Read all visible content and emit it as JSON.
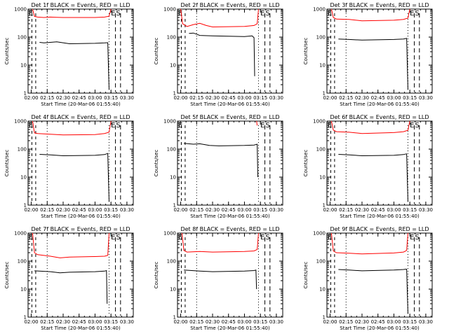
{
  "chart_data": [
    {
      "type": "line",
      "title": "Det 1f BLACK = Events, RED = LLD",
      "xlabel": "Start Time (20-Mar-06 01:55:40)",
      "ylabel": "Counts/sec",
      "yscale": "log",
      "ylim": [
        1,
        1000
      ],
      "yticks": [
        "1",
        "10",
        "100",
        "1000"
      ],
      "xticks": [
        "02:00",
        "02:15",
        "02:30",
        "02:45",
        "03:00",
        "03:15",
        "03:30"
      ],
      "markers": [
        "E",
        "S"
      ],
      "series": [
        {
          "color": "#ff0000",
          "values": [
            [
              2.02,
              1000
            ],
            [
              2.05,
              550
            ],
            [
              2.1,
              520
            ],
            [
              2.2,
              500
            ],
            [
              2.3,
              520
            ],
            [
              2.4,
              510
            ],
            [
              2.5,
              500
            ],
            [
              3.0,
              500
            ],
            [
              3.15,
              520
            ],
            [
              3.22,
              560
            ],
            [
              3.25,
              1000
            ]
          ]
        },
        {
          "color": "#000000",
          "values": [
            [
              2.13,
              65
            ],
            [
              2.2,
              62
            ],
            [
              2.4,
              68
            ],
            [
              2.6,
              58
            ],
            [
              3.0,
              60
            ],
            [
              3.15,
              62
            ],
            [
              3.2,
              63
            ],
            [
              3.22,
              1.3
            ]
          ]
        }
      ]
    },
    {
      "type": "line",
      "title": "Det 2f BLACK = Events, RED = LLD",
      "xlabel": "Start Time (20-Mar-06 01:55:40)",
      "ylabel": "Counts/sec",
      "yscale": "log",
      "ylim": [
        1,
        1000
      ],
      "yticks": [
        "1",
        "10",
        "100",
        "1000"
      ],
      "xticks": [
        "02:00",
        "02:15",
        "02:30",
        "02:45",
        "03:00",
        "03:15",
        "03:30"
      ],
      "markers": [
        "E",
        "S"
      ],
      "series": [
        {
          "color": "#ff0000",
          "values": [
            [
              2.0,
              1000
            ],
            [
              2.03,
              300
            ],
            [
              2.1,
              240
            ],
            [
              2.2,
              280
            ],
            [
              2.3,
              310
            ],
            [
              2.4,
              260
            ],
            [
              2.5,
              230
            ],
            [
              3.0,
              240
            ],
            [
              3.15,
              260
            ],
            [
              3.2,
              300
            ],
            [
              3.22,
              1000
            ]
          ]
        },
        {
          "color": "#000000",
          "values": [
            [
              2.13,
              135
            ],
            [
              2.2,
              140
            ],
            [
              2.3,
              115
            ],
            [
              2.5,
              110
            ],
            [
              3.0,
              105
            ],
            [
              3.12,
              110
            ],
            [
              3.15,
              95
            ],
            [
              3.16,
              4
            ]
          ]
        }
      ]
    },
    {
      "type": "line",
      "title": "Det 3f BLACK = Events, RED = LLD",
      "xlabel": "Start Time (20-Mar-06 01:55:40)",
      "ylabel": "Counts/sec",
      "yscale": "log",
      "ylim": [
        1,
        1000
      ],
      "yticks": [
        "1",
        "10",
        "100",
        "1000"
      ],
      "xticks": [
        "02:00",
        "02:15",
        "02:30",
        "02:45",
        "03:00",
        "03:15",
        "03:30"
      ],
      "markers": [
        "E",
        "S"
      ],
      "series": [
        {
          "color": "#ff0000",
          "values": [
            [
              2.02,
              1000
            ],
            [
              2.05,
              500
            ],
            [
              2.1,
              440
            ],
            [
              2.3,
              430
            ],
            [
              2.5,
              380
            ],
            [
              3.0,
              400
            ],
            [
              3.15,
              430
            ],
            [
              3.22,
              480
            ],
            [
              3.25,
              1000
            ]
          ]
        },
        {
          "color": "#000000",
          "values": [
            [
              2.13,
              85
            ],
            [
              2.3,
              82
            ],
            [
              2.5,
              78
            ],
            [
              3.0,
              82
            ],
            [
              3.15,
              85
            ],
            [
              3.2,
              90
            ],
            [
              3.22,
              1.3
            ]
          ]
        }
      ]
    },
    {
      "type": "line",
      "title": "Det 4f BLACK = Events, RED = LLD",
      "xlabel": "Start Time (20-Mar-06 01:55:40)",
      "ylabel": "Counts/sec",
      "yscale": "log",
      "ylim": [
        1,
        1000
      ],
      "yticks": [
        "1",
        "10",
        "100",
        "1000"
      ],
      "xticks": [
        "02:00",
        "02:15",
        "02:30",
        "02:45",
        "03:00",
        "03:15",
        "03:30"
      ],
      "markers": [
        "E",
        "S"
      ],
      "series": [
        {
          "color": "#ff0000",
          "values": [
            [
              2.02,
              1000
            ],
            [
              2.05,
              380
            ],
            [
              2.1,
              360
            ],
            [
              2.3,
              340
            ],
            [
              2.5,
              320
            ],
            [
              3.0,
              330
            ],
            [
              3.15,
              360
            ],
            [
              3.22,
              400
            ],
            [
              3.25,
              1000
            ]
          ]
        },
        {
          "color": "#000000",
          "values": [
            [
              2.13,
              65
            ],
            [
              2.3,
              62
            ],
            [
              2.5,
              58
            ],
            [
              3.0,
              60
            ],
            [
              3.15,
              64
            ],
            [
              3.2,
              70
            ],
            [
              3.22,
              1.3
            ]
          ]
        }
      ]
    },
    {
      "type": "line",
      "title": "Det 5f BLACK = Events, RED = LLD",
      "xlabel": "Start Time (20-Mar-06 01:55:40)",
      "ylabel": "Counts/sec",
      "yscale": "log",
      "ylim": [
        1,
        1000
      ],
      "yticks": [
        "1",
        "10",
        "100",
        "1000"
      ],
      "xticks": [
        "02:00",
        "02:15",
        "02:30",
        "02:45",
        "03:00",
        "03:15",
        "03:30"
      ],
      "markers": [
        "E",
        "S"
      ],
      "series": [
        {
          "color": "#ff0000",
          "values": [
            [
              3.19,
              1000
            ],
            [
              3.2,
              700
            ]
          ]
        },
        {
          "color": "#000000",
          "values": [
            [
              2.05,
              160
            ],
            [
              2.2,
              150
            ],
            [
              2.3,
              155
            ],
            [
              2.45,
              135
            ],
            [
              2.6,
              130
            ],
            [
              3.0,
              135
            ],
            [
              3.15,
              140
            ],
            [
              3.2,
              150
            ],
            [
              3.21,
              10
            ]
          ]
        }
      ]
    },
    {
      "type": "line",
      "title": "Det 6f BLACK = Events, RED = LLD",
      "xlabel": "Start Time (20-Mar-06 01:55:40)",
      "ylabel": "Counts/sec",
      "yscale": "log",
      "ylim": [
        1,
        1000
      ],
      "yticks": [
        "1",
        "10",
        "100",
        "1000"
      ],
      "xticks": [
        "02:00",
        "02:15",
        "02:30",
        "02:45",
        "03:00",
        "03:15",
        "03:30"
      ],
      "markers": [
        "E",
        "S"
      ],
      "series": [
        {
          "color": "#ff0000",
          "values": [
            [
              2.02,
              1000
            ],
            [
              2.05,
              480
            ],
            [
              2.1,
              420
            ],
            [
              2.3,
              400
            ],
            [
              2.5,
              360
            ],
            [
              3.0,
              390
            ],
            [
              3.15,
              420
            ],
            [
              3.22,
              470
            ],
            [
              3.25,
              1000
            ]
          ]
        },
        {
          "color": "#000000",
          "values": [
            [
              2.13,
              65
            ],
            [
              2.3,
              62
            ],
            [
              2.5,
              58
            ],
            [
              3.0,
              60
            ],
            [
              3.15,
              64
            ],
            [
              3.2,
              68
            ],
            [
              3.22,
              1.3
            ]
          ]
        }
      ]
    },
    {
      "type": "line",
      "title": "Det 7f BLACK = Events, RED = LLD",
      "xlabel": "Start Time (20-Mar-06 01:55:40)",
      "ylabel": "Counts/sec",
      "yscale": "log",
      "ylim": [
        1,
        1000
      ],
      "yticks": [
        "1",
        "10",
        "100",
        "1000"
      ],
      "xticks": [
        "02:00",
        "02:15",
        "02:30",
        "02:45",
        "03:00",
        "03:15",
        "03:30"
      ],
      "markers": [
        "E",
        "S"
      ],
      "series": [
        {
          "color": "#ff0000",
          "values": [
            [
              2.02,
              1000
            ],
            [
              2.05,
              200
            ],
            [
              2.1,
              170
            ],
            [
              2.3,
              150
            ],
            [
              2.45,
              130
            ],
            [
              2.6,
              140
            ],
            [
              3.0,
              145
            ],
            [
              3.15,
              150
            ],
            [
              3.2,
              160
            ],
            [
              3.22,
              1000
            ]
          ]
        },
        {
          "color": "#000000",
          "values": [
            [
              2.05,
              45
            ],
            [
              2.3,
              42
            ],
            [
              2.45,
              38
            ],
            [
              2.6,
              40
            ],
            [
              3.0,
              42
            ],
            [
              3.15,
              44
            ],
            [
              3.18,
              46
            ],
            [
              3.19,
              3
            ]
          ]
        }
      ]
    },
    {
      "type": "line",
      "title": "Det 8f BLACK = Events, RED = LLD",
      "xlabel": "Start Time (20-Mar-06 01:55:40)",
      "ylabel": "Counts/sec",
      "yscale": "log",
      "ylim": [
        1,
        1000
      ],
      "yticks": [
        "1",
        "10",
        "100",
        "1000"
      ],
      "xticks": [
        "02:00",
        "02:15",
        "02:30",
        "02:45",
        "03:00",
        "03:15",
        "03:30"
      ],
      "markers": [
        "E",
        "S"
      ],
      "series": [
        {
          "color": "#ff0000",
          "values": [
            [
              2.02,
              1000
            ],
            [
              2.05,
              240
            ],
            [
              2.1,
              210
            ],
            [
              2.3,
              220
            ],
            [
              2.5,
              210
            ],
            [
              3.0,
              220
            ],
            [
              3.15,
              230
            ],
            [
              3.2,
              260
            ],
            [
              3.22,
              1000
            ]
          ]
        },
        {
          "color": "#000000",
          "values": [
            [
              2.05,
              48
            ],
            [
              2.3,
              44
            ],
            [
              2.5,
              42
            ],
            [
              3.0,
              44
            ],
            [
              3.15,
              46
            ],
            [
              3.18,
              48
            ],
            [
              3.19,
              10
            ]
          ]
        }
      ]
    },
    {
      "type": "line",
      "title": "Det 9f BLACK = Events, RED = LLD",
      "xlabel": "Start Time (20-Mar-06 01:55:40)",
      "ylabel": "Counts/sec",
      "yscale": "log",
      "ylim": [
        1,
        1000
      ],
      "yticks": [
        "1",
        "10",
        "100",
        "1000"
      ],
      "xticks": [
        "02:00",
        "02:15",
        "02:30",
        "02:45",
        "03:00",
        "03:15",
        "03:30"
      ],
      "markers": [
        "E",
        "S"
      ],
      "series": [
        {
          "color": "#ff0000",
          "values": [
            [
              2.02,
              1000
            ],
            [
              2.05,
              230
            ],
            [
              2.1,
              200
            ],
            [
              2.3,
              190
            ],
            [
              2.5,
              180
            ],
            [
              3.0,
              195
            ],
            [
              3.15,
              210
            ],
            [
              3.2,
              240
            ],
            [
              3.22,
              1000
            ]
          ]
        },
        {
          "color": "#000000",
          "values": [
            [
              2.13,
              50
            ],
            [
              2.3,
              48
            ],
            [
              2.5,
              45
            ],
            [
              3.0,
              48
            ],
            [
              3.15,
              50
            ],
            [
              3.2,
              52
            ],
            [
              3.22,
              1.3
            ]
          ]
        }
      ]
    }
  ]
}
